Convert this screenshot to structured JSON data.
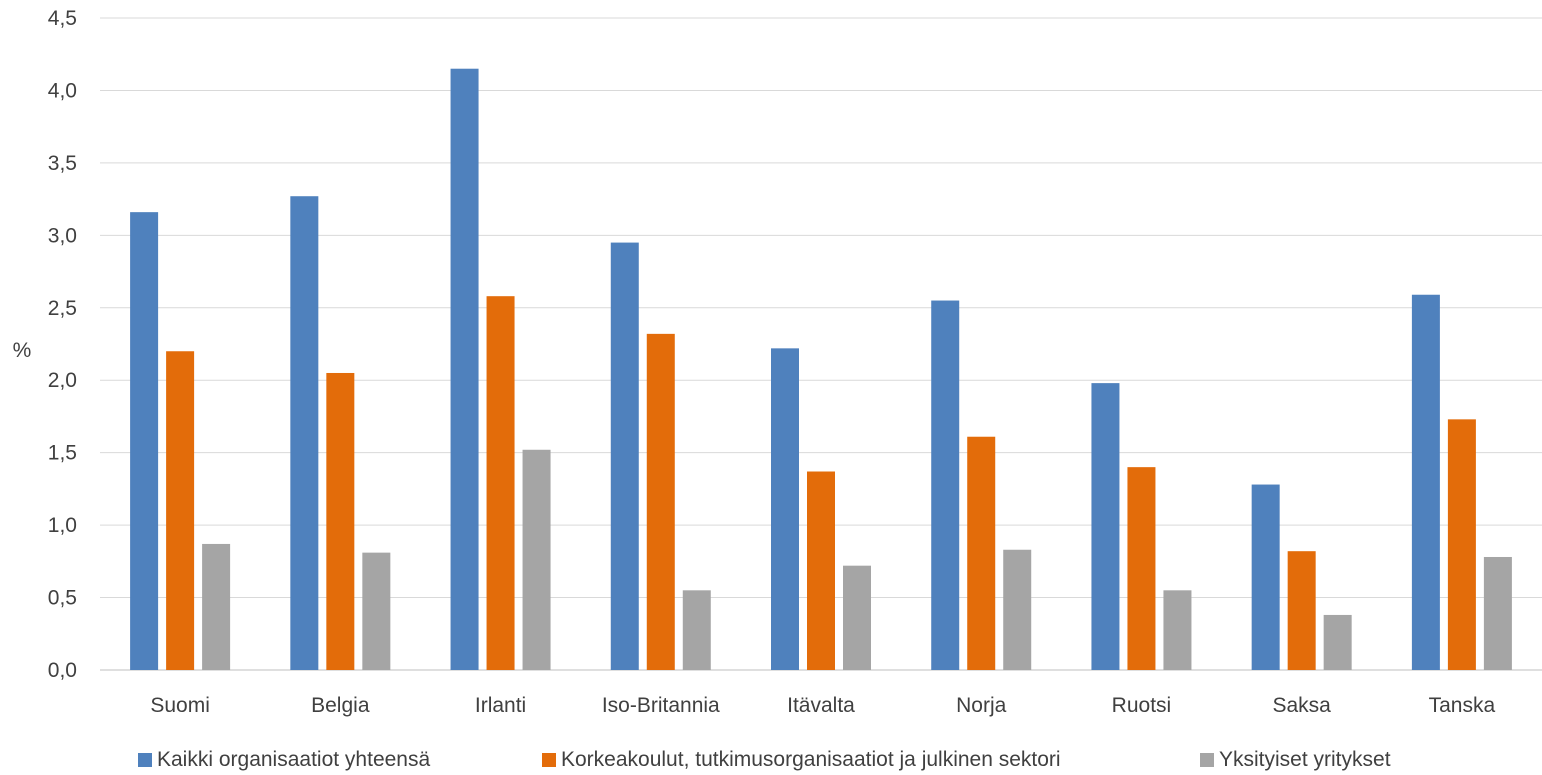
{
  "chart_data": {
    "type": "bar",
    "ylabel": "%",
    "ylim": [
      0,
      4.5
    ],
    "ytick_step": 0.5,
    "ytick_labels": [
      "0,0",
      "0,5",
      "1,0",
      "1,5",
      "2,0",
      "2,5",
      "3,0",
      "3,5",
      "4,0",
      "4,5"
    ],
    "categories": [
      "Suomi",
      "Belgia",
      "Irlanti",
      "Iso-Britannia",
      "Itävalta",
      "Norja",
      "Ruotsi",
      "Saksa",
      "Tanska"
    ],
    "series": [
      {
        "name": "Kaikki organisaatiot yhteensä",
        "color": "#4f81bd",
        "values": [
          3.16,
          3.27,
          4.15,
          2.95,
          2.22,
          2.55,
          1.98,
          1.28,
          2.59
        ]
      },
      {
        "name": "Korkeakoulut, tutkimusorganisaatiot ja julkinen sektori",
        "color": "#e36c0a",
        "values": [
          2.2,
          2.05,
          2.58,
          2.32,
          1.37,
          1.61,
          1.4,
          0.82,
          1.73
        ]
      },
      {
        "name": "Yksityiset yritykset",
        "color": "#a5a5a5",
        "values": [
          0.87,
          0.81,
          1.52,
          0.55,
          0.72,
          0.83,
          0.55,
          0.38,
          0.78
        ]
      }
    ],
    "grid": true,
    "legend_position": "bottom"
  }
}
